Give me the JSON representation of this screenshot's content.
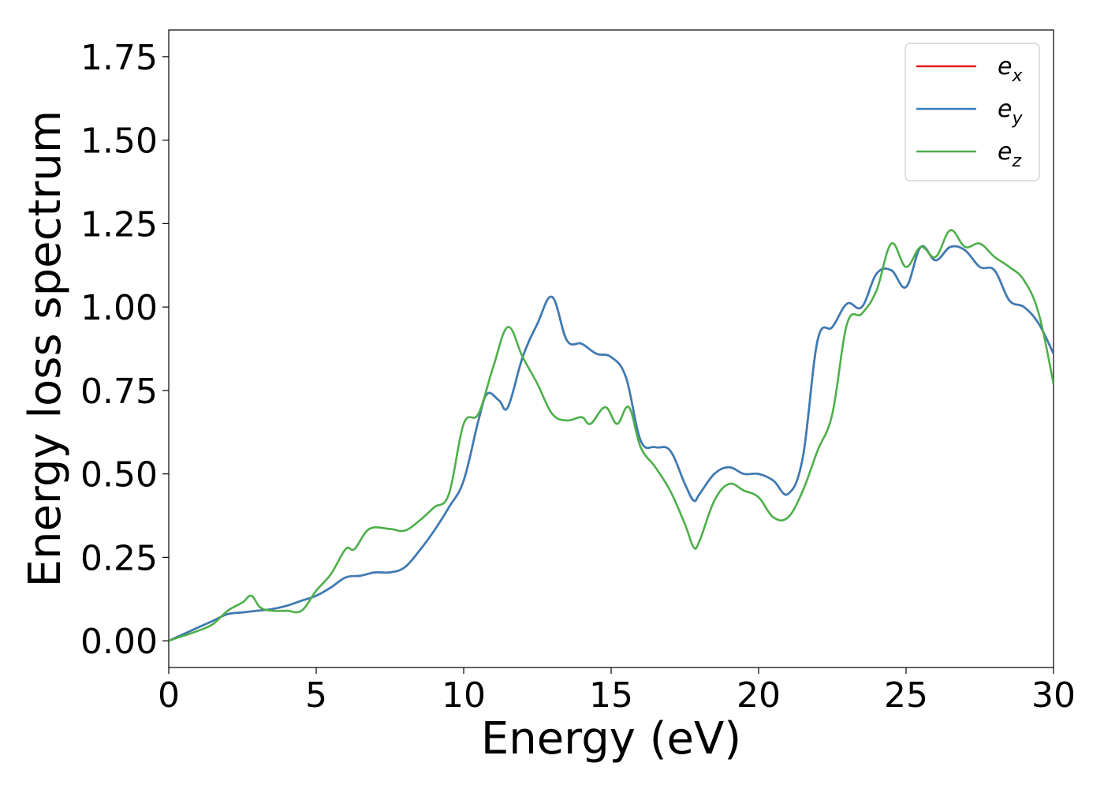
{
  "chart_data": {
    "type": "line",
    "title": "",
    "xlabel": "Energy (eV)",
    "ylabel": "Energy loss spectrum",
    "xlim": [
      0,
      30
    ],
    "ylim": [
      -0.08,
      1.83
    ],
    "xticks": [
      0,
      5,
      10,
      15,
      20,
      25,
      30
    ],
    "xtick_labels": [
      "0",
      "5",
      "10",
      "15",
      "20",
      "25",
      "30"
    ],
    "yticks": [
      0.0,
      0.25,
      0.5,
      0.75,
      1.0,
      1.25,
      1.5,
      1.75
    ],
    "ytick_labels": [
      "0.00",
      "0.25",
      "0.50",
      "0.75",
      "1.00",
      "1.25",
      "1.50",
      "1.75"
    ],
    "grid": false,
    "legend_position": "top-right",
    "series": [
      {
        "name": "e_x",
        "base": "e",
        "sub": "x",
        "color": "#e41a1c",
        "x": [
          0,
          0.5,
          1,
          1.5,
          2,
          2.5,
          3,
          3.5,
          4,
          4.5,
          5,
          5.5,
          6,
          6.5,
          7,
          7.5,
          8,
          8.5,
          9,
          9.5,
          10,
          10.5,
          10.8,
          11.2,
          11.5,
          12,
          12.5,
          13,
          13.5,
          14,
          14.5,
          15,
          15.5,
          16,
          16.5,
          17,
          17.5,
          17.8,
          18,
          18.5,
          19,
          19.5,
          20,
          20.5,
          21,
          21.5,
          22,
          22.5,
          23,
          23.5,
          24,
          24.5,
          25,
          25.5,
          26,
          26.5,
          27,
          27.5,
          28,
          28.5,
          29,
          29.5,
          30
        ],
        "y": [
          0.0,
          0.02,
          0.04,
          0.06,
          0.08,
          0.085,
          0.09,
          0.095,
          0.105,
          0.12,
          0.135,
          0.16,
          0.19,
          0.195,
          0.205,
          0.205,
          0.22,
          0.27,
          0.33,
          0.4,
          0.48,
          0.66,
          0.74,
          0.72,
          0.7,
          0.85,
          0.95,
          1.03,
          0.9,
          0.89,
          0.86,
          0.85,
          0.79,
          0.6,
          0.58,
          0.57,
          0.47,
          0.42,
          0.44,
          0.5,
          0.52,
          0.5,
          0.5,
          0.48,
          0.44,
          0.55,
          0.9,
          0.94,
          1.01,
          1.0,
          1.1,
          1.11,
          1.06,
          1.18,
          1.14,
          1.18,
          1.17,
          1.12,
          1.11,
          1.02,
          1.0,
          0.95,
          0.86
        ]
      },
      {
        "name": "e_y",
        "base": "e",
        "sub": "y",
        "color": "#377eb8",
        "x": [
          0,
          0.5,
          1,
          1.5,
          2,
          2.5,
          3,
          3.5,
          4,
          4.5,
          5,
          5.5,
          6,
          6.5,
          7,
          7.5,
          8,
          8.5,
          9,
          9.5,
          10,
          10.5,
          10.8,
          11.2,
          11.5,
          12,
          12.5,
          13,
          13.5,
          14,
          14.5,
          15,
          15.5,
          16,
          16.5,
          17,
          17.5,
          17.8,
          18,
          18.5,
          19,
          19.5,
          20,
          20.5,
          21,
          21.5,
          22,
          22.5,
          23,
          23.5,
          24,
          24.5,
          25,
          25.5,
          26,
          26.5,
          27,
          27.5,
          28,
          28.5,
          29,
          29.5,
          30
        ],
        "y": [
          0.0,
          0.02,
          0.04,
          0.06,
          0.08,
          0.085,
          0.09,
          0.095,
          0.105,
          0.12,
          0.135,
          0.16,
          0.19,
          0.195,
          0.205,
          0.205,
          0.22,
          0.27,
          0.33,
          0.4,
          0.48,
          0.66,
          0.74,
          0.72,
          0.7,
          0.85,
          0.95,
          1.03,
          0.9,
          0.89,
          0.86,
          0.85,
          0.79,
          0.6,
          0.58,
          0.57,
          0.47,
          0.42,
          0.44,
          0.5,
          0.52,
          0.5,
          0.5,
          0.48,
          0.44,
          0.55,
          0.9,
          0.94,
          1.01,
          1.0,
          1.1,
          1.11,
          1.06,
          1.18,
          1.14,
          1.18,
          1.17,
          1.12,
          1.11,
          1.02,
          1.0,
          0.95,
          0.86
        ]
      },
      {
        "name": "e_z",
        "base": "e",
        "sub": "z",
        "color": "#4daf4a",
        "x": [
          0,
          0.5,
          1,
          1.5,
          2,
          2.5,
          2.8,
          3.1,
          3.5,
          4,
          4.5,
          5,
          5.5,
          6,
          6.3,
          6.8,
          7.5,
          8,
          8.5,
          9,
          9.5,
          10,
          10.5,
          11,
          11.5,
          12,
          12.5,
          13,
          13.5,
          14,
          14.3,
          14.8,
          15.2,
          15.6,
          16,
          16.5,
          17,
          17.5,
          17.8,
          18,
          18.5,
          19,
          19.5,
          20,
          20.5,
          21,
          21.5,
          22,
          22.5,
          23,
          23.5,
          24,
          24.5,
          25,
          25.5,
          26,
          26.5,
          27,
          27.5,
          28,
          28.5,
          29,
          29.5,
          30
        ],
        "y": [
          0.0,
          0.015,
          0.03,
          0.05,
          0.09,
          0.115,
          0.135,
          0.1,
          0.09,
          0.09,
          0.09,
          0.15,
          0.2,
          0.275,
          0.275,
          0.335,
          0.335,
          0.33,
          0.36,
          0.4,
          0.44,
          0.65,
          0.68,
          0.82,
          0.94,
          0.85,
          0.77,
          0.68,
          0.66,
          0.67,
          0.65,
          0.7,
          0.65,
          0.7,
          0.58,
          0.52,
          0.45,
          0.35,
          0.28,
          0.3,
          0.42,
          0.47,
          0.45,
          0.43,
          0.37,
          0.37,
          0.45,
          0.57,
          0.68,
          0.95,
          0.98,
          1.05,
          1.19,
          1.12,
          1.18,
          1.15,
          1.23,
          1.18,
          1.19,
          1.15,
          1.12,
          1.08,
          0.98,
          0.77
        ]
      }
    ]
  }
}
